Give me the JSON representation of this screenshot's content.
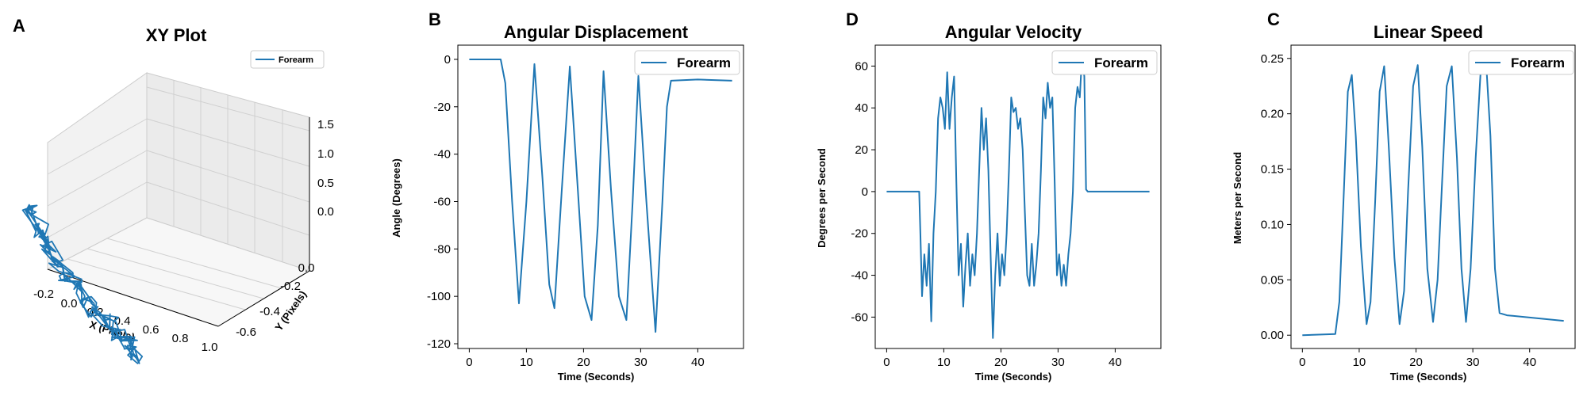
{
  "chart_data": [
    {
      "panel": "A",
      "type": "line",
      "subtype": "3d",
      "title": "XY Plot",
      "xlabel": "X (Pixels)",
      "ylabel": "Y (Pixels)",
      "zlabel": "",
      "xlim": [
        -0.2,
        1.0
      ],
      "ylim": [
        -0.7,
        0.1
      ],
      "zlim": [
        -0.2,
        1.6
      ],
      "xticks": [
        "-0.2",
        "0.0",
        "0.2",
        "0.4",
        "0.6",
        "0.8",
        "1.0"
      ],
      "yticks": [
        "-0.6",
        "-0.4",
        "-0.2",
        "0.0"
      ],
      "zticks": [
        "0.0",
        "0.5",
        "1.0",
        "1.5"
      ],
      "legend": "top-right",
      "color": "#1f77b4",
      "series": [
        {
          "name": "Forearm",
          "points": [
            {
              "x": -0.2,
              "y": -0.05,
              "z": 0.62
            },
            {
              "x": -0.05,
              "y": -0.15,
              "z": 0.55
            },
            {
              "x": 0.05,
              "y": -0.2,
              "z": 0.45
            },
            {
              "x": 0.15,
              "y": -0.25,
              "z": 0.38
            },
            {
              "x": 0.25,
              "y": -0.3,
              "z": 0.3
            },
            {
              "x": 0.35,
              "y": -0.32,
              "z": 0.24
            },
            {
              "x": 0.45,
              "y": -0.36,
              "z": 0.18
            },
            {
              "x": 0.55,
              "y": -0.4,
              "z": 0.12
            },
            {
              "x": 0.65,
              "y": -0.42,
              "z": 0.07
            },
            {
              "x": 0.75,
              "y": -0.46,
              "z": 0.03
            },
            {
              "x": 0.85,
              "y": -0.5,
              "z": 0.0
            },
            {
              "x": 0.95,
              "y": -0.55,
              "z": -0.03
            }
          ]
        }
      ]
    },
    {
      "panel": "B",
      "type": "line",
      "title": "Angular Displacement",
      "xlabel": "Time (Seconds)",
      "ylabel": "Angle (Degrees)",
      "xlim": [
        -2,
        48
      ],
      "ylim": [
        -122,
        6
      ],
      "xticks": [
        0,
        10,
        20,
        30,
        40
      ],
      "yticks": [
        -120,
        -100,
        -80,
        -60,
        -40,
        -20,
        0
      ],
      "legend": "top-right",
      "color": "#1f77b4",
      "series": [
        {
          "name": "Forearm",
          "x": [
            0,
            5.5,
            6.3,
            7.5,
            8.7,
            10.0,
            11.4,
            12.8,
            14.0,
            14.9,
            16.2,
            17.6,
            19.0,
            20.2,
            21.4,
            22.5,
            23.5,
            24.8,
            26.2,
            27.5,
            28.6,
            29.6,
            31.0,
            32.6,
            33.8,
            34.6,
            35.3,
            40.0,
            46.0
          ],
          "y": [
            0,
            0,
            -10,
            -60,
            -103,
            -60,
            -2,
            -50,
            -95,
            -105,
            -55,
            -3,
            -55,
            -100,
            -110,
            -70,
            -5,
            -55,
            -100,
            -110,
            -60,
            -7,
            -60,
            -115,
            -60,
            -20,
            -9,
            -8.5,
            -9
          ]
        }
      ]
    },
    {
      "panel": "D",
      "type": "line",
      "title": "Angular Velocity",
      "xlabel": "Time (Seconds)",
      "ylabel": "Degrees per Second",
      "xlim": [
        -2,
        48
      ],
      "ylim": [
        -75,
        70
      ],
      "xticks": [
        0,
        10,
        20,
        30,
        40
      ],
      "yticks": [
        -60,
        -40,
        -20,
        0,
        20,
        40,
        60
      ],
      "legend": "top-right",
      "color": "#1f77b4",
      "series": [
        {
          "name": "Forearm",
          "x": [
            0,
            5.7,
            5.9,
            6.2,
            6.6,
            7.0,
            7.4,
            7.8,
            8.2,
            8.6,
            9.0,
            9.4,
            9.8,
            10.2,
            10.6,
            11.0,
            11.4,
            11.8,
            12.2,
            12.6,
            13.0,
            13.4,
            13.8,
            14.2,
            14.6,
            15.0,
            15.4,
            15.8,
            16.2,
            16.6,
            17.0,
            17.4,
            17.8,
            18.2,
            18.6,
            19.0,
            19.4,
            19.8,
            20.2,
            20.6,
            21.0,
            21.4,
            21.8,
            22.2,
            22.6,
            23.0,
            23.4,
            23.8,
            24.2,
            24.6,
            25.0,
            25.4,
            25.8,
            26.2,
            26.6,
            27.0,
            27.4,
            27.8,
            28.2,
            28.6,
            29.0,
            29.4,
            29.8,
            30.2,
            30.6,
            31.0,
            31.4,
            31.8,
            32.2,
            32.6,
            33.0,
            33.4,
            33.8,
            34.2,
            34.6,
            34.9,
            35.2,
            40.0,
            46.0
          ],
          "y": [
            0,
            0,
            -20,
            -50,
            -30,
            -45,
            -25,
            -62,
            -20,
            0,
            35,
            45,
            40,
            30,
            57,
            30,
            45,
            55,
            5,
            -40,
            -25,
            -55,
            -35,
            -20,
            -45,
            -30,
            -40,
            -20,
            10,
            40,
            20,
            35,
            10,
            -30,
            -70,
            -40,
            -20,
            -45,
            -30,
            -40,
            -20,
            10,
            45,
            38,
            40,
            30,
            35,
            20,
            -10,
            -40,
            -45,
            -25,
            -45,
            -35,
            -20,
            10,
            45,
            35,
            52,
            40,
            45,
            5,
            -40,
            -30,
            -45,
            -35,
            -45,
            -30,
            -20,
            0,
            40,
            50,
            45,
            65,
            55,
            1,
            0,
            0,
            0
          ]
        }
      ]
    },
    {
      "panel": "C",
      "type": "line",
      "title": "Linear Speed",
      "xlabel": "Time (Seconds)",
      "ylabel": "Meters per Second",
      "xlim": [
        -2,
        48
      ],
      "ylim": [
        -0.012,
        0.262
      ],
      "xticks": [
        0,
        10,
        20,
        30,
        40
      ],
      "yticks": [
        "0.00",
        "0.05",
        "0.10",
        "0.15",
        "0.20",
        "0.25"
      ],
      "legend": "top-right",
      "color": "#1f77b4",
      "series": [
        {
          "name": "Forearm",
          "x": [
            0,
            5.8,
            6.5,
            7.3,
            8.0,
            8.7,
            9.4,
            10.3,
            11.3,
            12.0,
            12.8,
            13.6,
            14.4,
            15.2,
            16.2,
            17.1,
            17.9,
            18.6,
            19.5,
            20.3,
            21.1,
            22.0,
            23.0,
            23.8,
            24.6,
            25.4,
            26.3,
            27.2,
            28.0,
            28.8,
            29.6,
            30.5,
            31.4,
            32.3,
            33.1,
            33.9,
            34.7,
            36.0,
            40.0,
            46.0
          ],
          "y": [
            0,
            0.001,
            0.03,
            0.13,
            0.22,
            0.235,
            0.18,
            0.08,
            0.01,
            0.03,
            0.12,
            0.22,
            0.243,
            0.17,
            0.07,
            0.01,
            0.04,
            0.13,
            0.225,
            0.244,
            0.17,
            0.06,
            0.012,
            0.05,
            0.14,
            0.225,
            0.243,
            0.16,
            0.06,
            0.012,
            0.06,
            0.16,
            0.24,
            0.25,
            0.18,
            0.06,
            0.02,
            0.018,
            0.016,
            0.013
          ]
        }
      ]
    }
  ]
}
